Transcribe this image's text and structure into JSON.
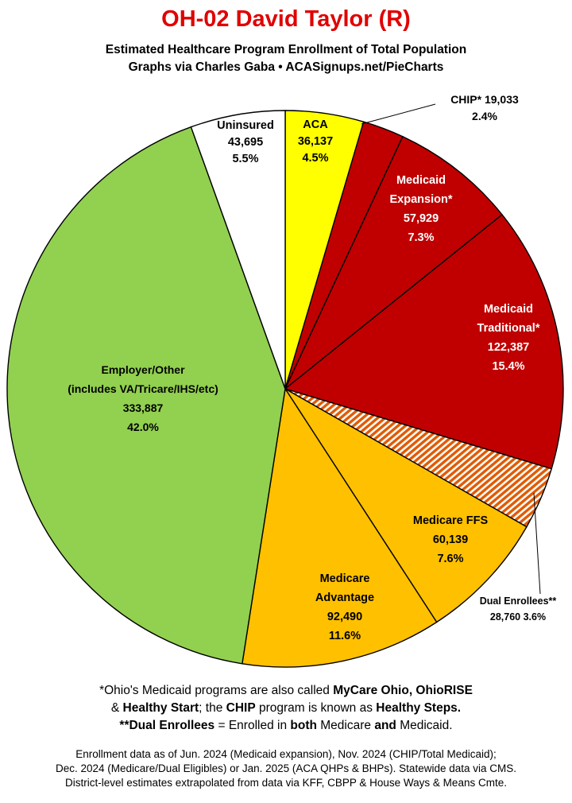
{
  "title": "OH-02 David Taylor (R)",
  "subtitle_line1": "Estimated Healthcare Program Enrollment of Total Population",
  "subtitle_line2": "Graphs via Charles Gaba  •  ACASignups.net/PieCharts",
  "notes": {
    "line1_a": "*Ohio's Medicaid programs are also called ",
    "line1_b": "MyCare Ohio, OhioRISE",
    "line2_a": "& ",
    "line2_b": "Healthy Start",
    "line2_c": "; the ",
    "line2_d": "CHIP",
    "line2_e": " program is known as ",
    "line2_f": "Healthy Steps.",
    "line3_a": "**Dual Enrollees",
    "line3_b": " = Enrolled in ",
    "line3_c": "both",
    "line3_d": " Medicare ",
    "line3_e": "and",
    "line3_f": " Medicaid."
  },
  "source_line1": "Enrollment data as of Jun. 2024 (Medicaid expansion), Nov. 2024 (CHIP/Total Medicaid);",
  "source_line2": "Dec. 2024 (Medicare/Dual Eligibles) or Jan. 2025 (ACA QHPs & BHPs). Statewide data via CMS.",
  "source_line3": "District-level estimates extrapolated from data via KFF, CBPP & House Ways & Means Cmte.",
  "chart_data": {
    "type": "pie",
    "start": "12 o'clock, clockwise",
    "slices": [
      {
        "label": "ACA",
        "value": 36137,
        "percent": "4.5%",
        "color": "#ffff00",
        "label_lines": [
          "ACA",
          "36,137",
          "4.5%"
        ],
        "label_color": "#000000"
      },
      {
        "label": "CHIP*",
        "value": 19033,
        "percent": "2.4%",
        "color": "#c00000",
        "label_lines": [
          "CHIP* 19,033",
          "2.4%"
        ],
        "label_color": "#000000",
        "callout": true
      },
      {
        "label": "Medicaid Expansion*",
        "value": 57929,
        "percent": "7.3%",
        "color": "#c00000",
        "label_lines": [
          "Medicaid",
          "Expansion*",
          "57,929",
          "7.3%"
        ],
        "label_color": "#ffffff"
      },
      {
        "label": "Medicaid Traditional*",
        "value": 122387,
        "percent": "15.4%",
        "color": "#c00000",
        "label_lines": [
          "Medicaid",
          "Traditional*",
          "122,387",
          "15.4%"
        ],
        "label_color": "#ffffff"
      },
      {
        "label": "Dual Enrollees**",
        "value": 28760,
        "percent": "3.6%",
        "color": "#e05a00",
        "hatched": true,
        "label_lines": [
          "Dual Enrollees**",
          "28,760 3.6%"
        ],
        "label_color": "#000000",
        "callout": true
      },
      {
        "label": "Medicare FFS",
        "value": 60139,
        "percent": "7.6%",
        "color": "#ffc000",
        "label_lines": [
          "Medicare FFS",
          "60,139",
          "7.6%"
        ],
        "label_color": "#000000"
      },
      {
        "label": "Medicare Advantage",
        "value": 92490,
        "percent": "11.6%",
        "color": "#ffc000",
        "label_lines": [
          "Medicare",
          "Advantage",
          "92,490",
          "11.6%"
        ],
        "label_color": "#000000"
      },
      {
        "label": "Employer/Other (includes VA/Tricare/IHS/etc)",
        "value": 333887,
        "percent": "42.0%",
        "color": "#92d050",
        "label_lines": [
          "Employer/Other",
          "(includes VA/Tricare/IHS/etc)",
          "333,887",
          "42.0%"
        ],
        "label_color": "#000000"
      },
      {
        "label": "Uninsured",
        "value": 43695,
        "percent": "5.5%",
        "color": "#ffffff",
        "label_lines": [
          "Uninsured",
          "43,695",
          "5.5%"
        ],
        "label_color": "#000000"
      }
    ]
  }
}
